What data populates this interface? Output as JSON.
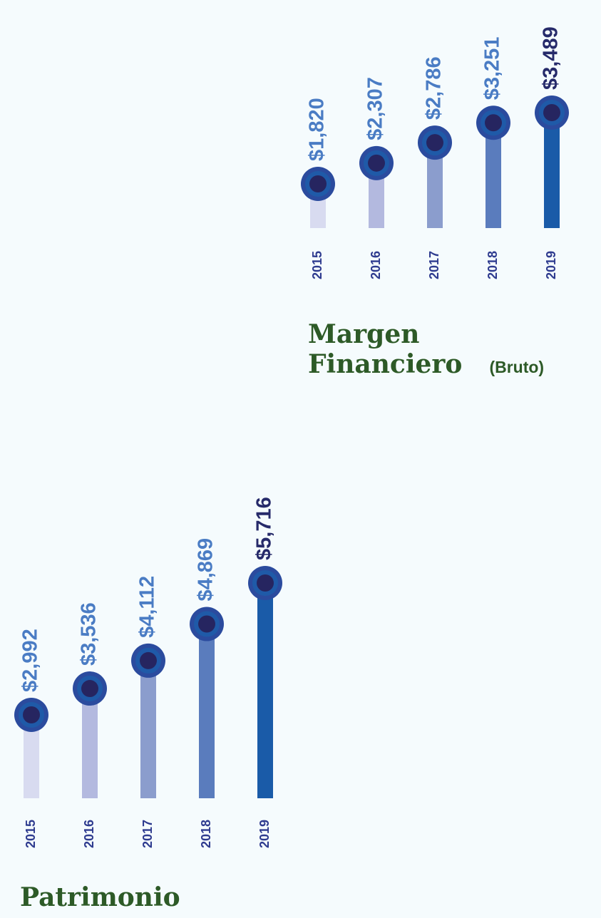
{
  "chart_data": [
    {
      "type": "lollipop",
      "title": "Margen Financiero",
      "subtitle": "(Bruto)",
      "categories": [
        "2015",
        "2016",
        "2017",
        "2018",
        "2019"
      ],
      "values": [
        1820,
        2307,
        2786,
        3251,
        3489
      ],
      "value_labels": [
        "$1,820",
        "$2,307",
        "$2,786",
        "$3,251",
        "$3,489"
      ],
      "colors": [
        "#d8dbf0",
        "#b3b9df",
        "#8b9dcd",
        "#5a7cbd",
        "#1a5ba8"
      ],
      "label_color": "#4a7cc4",
      "highlight_label_color": "#262a6a"
    },
    {
      "type": "lollipop",
      "title": "Patrimonio",
      "categories": [
        "2015",
        "2016",
        "2017",
        "2018",
        "2019"
      ],
      "values": [
        2992,
        3536,
        4112,
        4869,
        5716
      ],
      "value_labels": [
        "$2,992",
        "$3,536",
        "$4,112",
        "$4,869",
        "$5,716"
      ],
      "colors": [
        "#d8dbf0",
        "#b3b9df",
        "#8b9dcd",
        "#5a7cbd",
        "#1a5ba8"
      ],
      "label_color": "#4a7cc4",
      "highlight_label_color": "#262a6a"
    }
  ]
}
